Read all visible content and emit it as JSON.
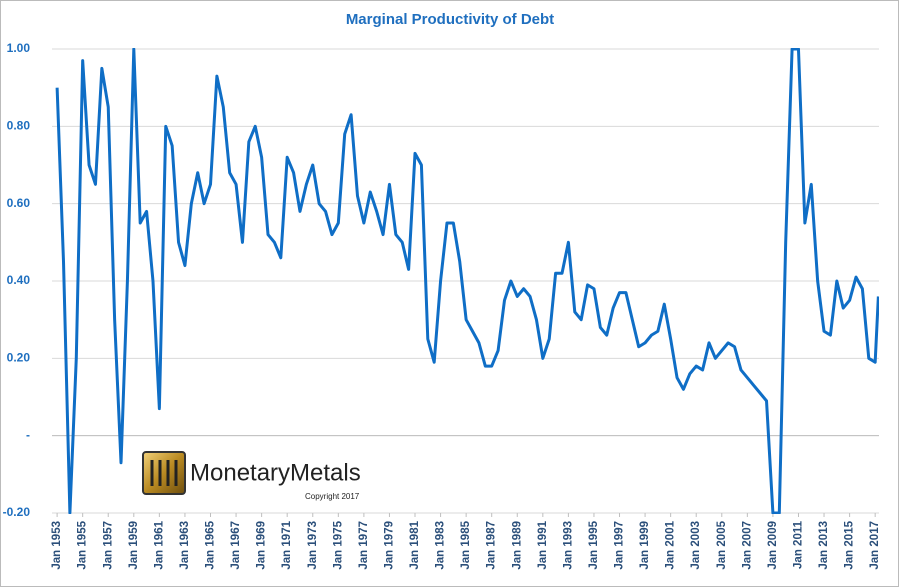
{
  "chart_data": {
    "type": "line",
    "title": "Marginal Productivity of Debt",
    "annotations": {
      "brand": "MonetaryMetals",
      "copyright": "Copyright 2017"
    },
    "x": [
      1953,
      1953.5,
      1954,
      1954.5,
      1955,
      1955.5,
      1956,
      1956.5,
      1957,
      1957.5,
      1958,
      1958.5,
      1959,
      1959.5,
      1960,
      1960.5,
      1961,
      1961.5,
      1962,
      1962.5,
      1963,
      1963.5,
      1964,
      1964.5,
      1965,
      1965.5,
      1966,
      1966.5,
      1967,
      1967.5,
      1968,
      1968.5,
      1969,
      1969.5,
      1970,
      1970.5,
      1971,
      1971.5,
      1972,
      1972.5,
      1973,
      1973.5,
      1974,
      1974.5,
      1975,
      1975.5,
      1976,
      1976.5,
      1977,
      1977.5,
      1978,
      1978.5,
      1979,
      1979.5,
      1980,
      1980.5,
      1981,
      1981.5,
      1982,
      1982.5,
      1983,
      1983.5,
      1984,
      1984.5,
      1985,
      1985.5,
      1986,
      1986.5,
      1987,
      1987.5,
      1988,
      1988.5,
      1989,
      1989.5,
      1990,
      1990.5,
      1991,
      1991.5,
      1992,
      1992.5,
      1993,
      1993.5,
      1994,
      1994.5,
      1995,
      1995.5,
      1996,
      1996.5,
      1997,
      1997.5,
      1998,
      1998.5,
      1999,
      1999.5,
      2000,
      2000.5,
      2001,
      2001.5,
      2002,
      2002.5,
      2003,
      2003.5,
      2004,
      2004.5,
      2005,
      2005.5,
      2006,
      2006.5,
      2007,
      2007.5,
      2008,
      2008.5,
      2009,
      2009.5,
      2010,
      2010.5,
      2011,
      2011.5,
      2012,
      2012.5,
      2013,
      2013.5,
      2014,
      2014.5,
      2015,
      2015.5,
      2016,
      2016.5,
      2017,
      2017.25
    ],
    "series": [
      {
        "name": "Marginal Productivity of Debt",
        "color": "#0f6ec6",
        "values": [
          0.9,
          0.45,
          -0.2,
          0.2,
          0.97,
          0.7,
          0.65,
          0.95,
          0.85,
          0.3,
          -0.07,
          0.4,
          1.0,
          0.55,
          0.58,
          0.4,
          0.07,
          0.8,
          0.75,
          0.5,
          0.44,
          0.6,
          0.68,
          0.6,
          0.65,
          0.93,
          0.85,
          0.68,
          0.65,
          0.5,
          0.76,
          0.8,
          0.72,
          0.52,
          0.5,
          0.46,
          0.72,
          0.68,
          0.58,
          0.65,
          0.7,
          0.6,
          0.58,
          0.52,
          0.55,
          0.78,
          0.83,
          0.62,
          0.55,
          0.63,
          0.58,
          0.52,
          0.65,
          0.52,
          0.5,
          0.43,
          0.73,
          0.7,
          0.25,
          0.19,
          0.4,
          0.55,
          0.55,
          0.45,
          0.3,
          0.27,
          0.24,
          0.18,
          0.18,
          0.22,
          0.35,
          0.4,
          0.36,
          0.38,
          0.36,
          0.3,
          0.2,
          0.25,
          0.42,
          0.42,
          0.5,
          0.32,
          0.3,
          0.39,
          0.38,
          0.28,
          0.26,
          0.33,
          0.37,
          0.37,
          0.3,
          0.23,
          0.24,
          0.26,
          0.27,
          0.34,
          0.25,
          0.15,
          0.12,
          0.16,
          0.18,
          0.17,
          0.24,
          0.2,
          0.22,
          0.24,
          0.23,
          0.17,
          0.15,
          0.13,
          0.11,
          0.09,
          -0.2,
          -0.2,
          0.5,
          1.0,
          1.0,
          0.55,
          0.65,
          0.4,
          0.27,
          0.26,
          0.4,
          0.33,
          0.35,
          0.41,
          0.38,
          0.2,
          0.19,
          0.36
        ]
      }
    ],
    "xlim": [
      1952.6,
      2017.3
    ],
    "xticks": [
      {
        "value": 1953,
        "label": "Jan 1953"
      },
      {
        "value": 1955,
        "label": "Jan 1955"
      },
      {
        "value": 1957,
        "label": "Jan 1957"
      },
      {
        "value": 1959,
        "label": "Jan 1959"
      },
      {
        "value": 1961,
        "label": "Jan 1961"
      },
      {
        "value": 1963,
        "label": "Jan 1963"
      },
      {
        "value": 1965,
        "label": "Jan 1965"
      },
      {
        "value": 1967,
        "label": "Jan 1967"
      },
      {
        "value": 1969,
        "label": "Jan 1969"
      },
      {
        "value": 1971,
        "label": "Jan 1971"
      },
      {
        "value": 1973,
        "label": "Jan 1973"
      },
      {
        "value": 1975,
        "label": "Jan 1975"
      },
      {
        "value": 1977,
        "label": "Jan 1977"
      },
      {
        "value": 1979,
        "label": "Jan 1979"
      },
      {
        "value": 1981,
        "label": "Jan 1981"
      },
      {
        "value": 1983,
        "label": "Jan 1983"
      },
      {
        "value": 1985,
        "label": "Jan 1985"
      },
      {
        "value": 1987,
        "label": "Jan 1987"
      },
      {
        "value": 1989,
        "label": "Jan 1989"
      },
      {
        "value": 1991,
        "label": "Jan 1991"
      },
      {
        "value": 1993,
        "label": "Jan 1993"
      },
      {
        "value": 1995,
        "label": "Jan 1995"
      },
      {
        "value": 1997,
        "label": "Jan 1997"
      },
      {
        "value": 1999,
        "label": "Jan 1999"
      },
      {
        "value": 2001,
        "label": "Jan 2001"
      },
      {
        "value": 2003,
        "label": "Jan 2003"
      },
      {
        "value": 2005,
        "label": "Jan 2005"
      },
      {
        "value": 2007,
        "label": "Jan 2007"
      },
      {
        "value": 2009,
        "label": "Jan 2009"
      },
      {
        "value": 2011,
        "label": "Jan 2011"
      },
      {
        "value": 2013,
        "label": "Jan 2013"
      },
      {
        "value": 2015,
        "label": "Jan 2015"
      },
      {
        "value": 2017,
        "label": "Jan 2017"
      }
    ],
    "ylim": [
      -0.2,
      1.0
    ],
    "yticks": [
      {
        "value": -0.2,
        "label": "-0.20"
      },
      {
        "value": 0,
        "label": "-"
      },
      {
        "value": 0.2,
        "label": "0.20"
      },
      {
        "value": 0.4,
        "label": "0.40"
      },
      {
        "value": 0.6,
        "label": "0.60"
      },
      {
        "value": 0.8,
        "label": "0.80"
      },
      {
        "value": 1,
        "label": "1.00"
      }
    ],
    "grid": true
  }
}
